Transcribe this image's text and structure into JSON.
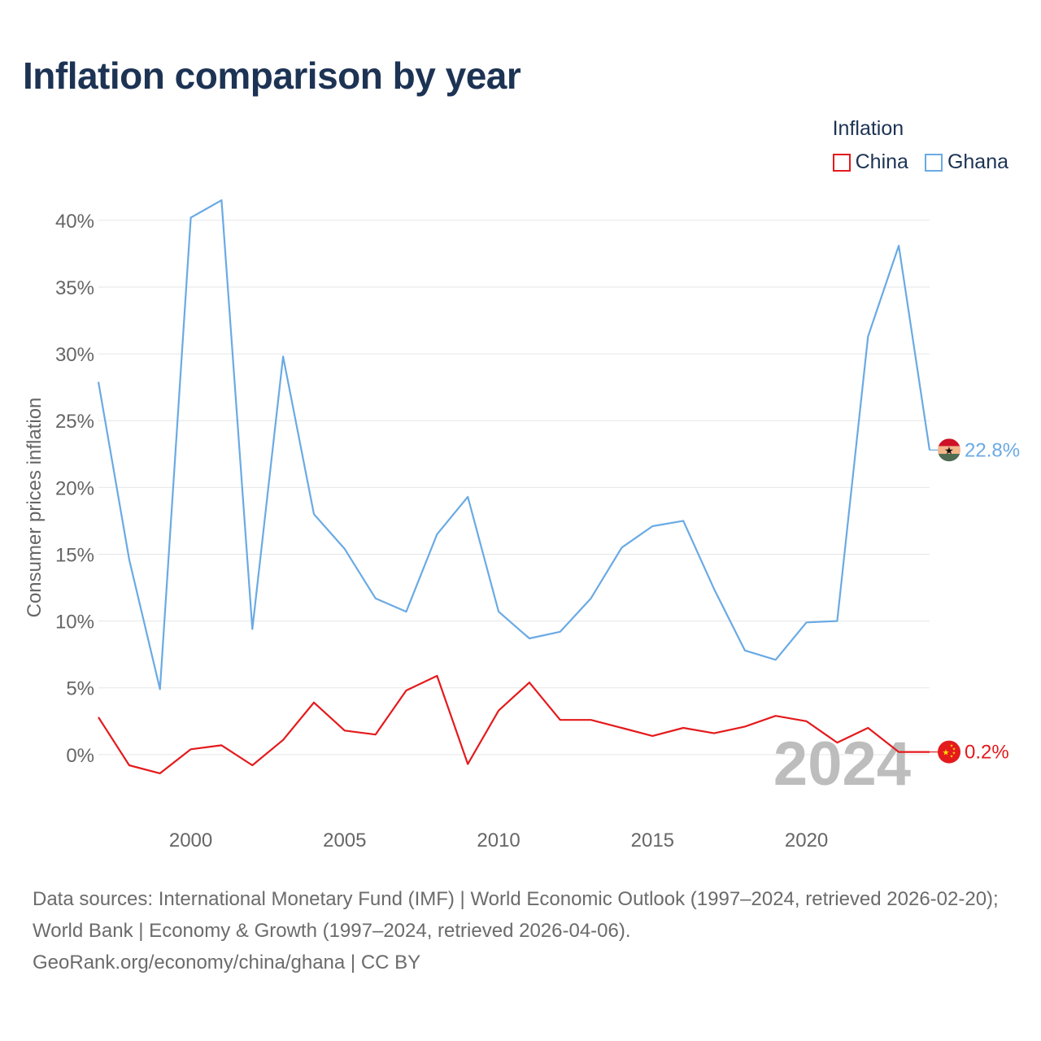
{
  "title": "Inflation comparison by year",
  "legend": {
    "title": "Inflation"
  },
  "colors": {
    "china": "#e41a1c",
    "ghana": "#6aaae4",
    "grid": "#e6e6e6",
    "axis_text": "#666666",
    "watermark": "#bdbdbd"
  },
  "chart_data": {
    "type": "line",
    "title": "Inflation comparison by year",
    "xlabel": "",
    "ylabel": "Consumer prices inflation",
    "x": [
      1997,
      1998,
      1999,
      2000,
      2001,
      2002,
      2003,
      2004,
      2005,
      2006,
      2007,
      2008,
      2009,
      2010,
      2011,
      2012,
      2013,
      2014,
      2015,
      2016,
      2017,
      2018,
      2019,
      2020,
      2021,
      2022,
      2023,
      2024
    ],
    "xlim": [
      1997,
      2024
    ],
    "ylim": [
      -5,
      42
    ],
    "x_ticks": [
      2000,
      2005,
      2010,
      2015,
      2020
    ],
    "x_tick_labels": [
      "2000",
      "2005",
      "2010",
      "2015",
      "2020"
    ],
    "y_ticks": [
      0,
      5,
      10,
      15,
      20,
      25,
      30,
      35,
      40
    ],
    "y_tick_labels": [
      "0%",
      "5%",
      "10%",
      "15%",
      "20%",
      "25%",
      "30%",
      "35%",
      "40%"
    ],
    "grid": true,
    "legend_position": "top-right",
    "watermark": "2024",
    "series": [
      {
        "name": "China",
        "color": "#e41a1c",
        "end_label": "0.2%",
        "values": [
          2.8,
          -0.8,
          -1.4,
          0.4,
          0.7,
          -0.8,
          1.1,
          3.9,
          1.8,
          1.5,
          4.8,
          5.9,
          -0.7,
          3.3,
          5.4,
          2.6,
          2.6,
          2.0,
          1.4,
          2.0,
          1.6,
          2.1,
          2.9,
          2.5,
          0.9,
          2.0,
          0.2,
          0.2
        ]
      },
      {
        "name": "Ghana",
        "color": "#6aaae4",
        "end_label": "22.8%",
        "values": [
          27.9,
          14.6,
          4.9,
          40.2,
          41.5,
          9.4,
          29.8,
          18.0,
          15.4,
          11.7,
          10.7,
          16.5,
          19.3,
          10.7,
          8.7,
          9.2,
          11.7,
          15.5,
          17.1,
          17.5,
          12.4,
          7.8,
          7.1,
          9.9,
          10.0,
          31.3,
          38.1,
          22.8
        ]
      }
    ]
  },
  "footer": {
    "sources": "Data sources: International Monetary Fund (IMF) | World Economic Outlook (1997–2024, retrieved 2026-02-20); World Bank | Economy & Growth (1997–2024, retrieved 2026-04-06).",
    "credit": "GeoRank.org/economy/china/ghana | CC BY"
  }
}
